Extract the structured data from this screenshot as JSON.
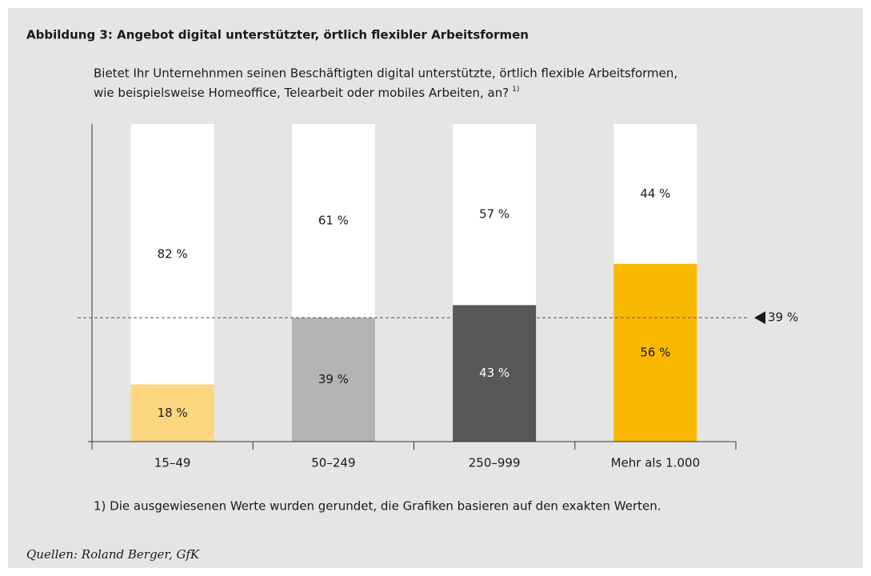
{
  "chart_data": {
    "type": "stacked_bar",
    "title": "Abbildung 3: Angebot digital unterstützter, örtlich flexibler Arbeitsformen",
    "subtitle": [
      "Bietet Ihr Unternehnmen seinen Beschäftigten digital unterstützte, örtlich flexible Arbeitsformen,",
      "wie beispielsweise Homeoffice, Telearbeit oder mobiles Arbeiten, an?"
    ],
    "subtitle_note": "1)",
    "categories": [
      "15–49",
      "50–249",
      "250–999",
      "Mehr als 1.000"
    ],
    "series": [
      {
        "colors": [
          "#fdd77f",
          "#b3b3b3",
          "#575757",
          "#f9b800"
        ],
        "values": [
          18,
          39,
          43,
          56
        ],
        "value_labels": [
          "18 %",
          "39 %",
          "43 %",
          "56 %"
        ]
      },
      {
        "color": "#ffffff",
        "values": [
          82,
          61,
          57,
          44
        ],
        "value_labels": [
          "82 %",
          "61 %",
          "57 %",
          "44 %"
        ]
      }
    ],
    "ylim": [
      0,
      100
    ],
    "reference_line": {
      "value": 39,
      "label": "39 %"
    },
    "footnote": "1) Die ausgewiesenen Werte wurden gerundet, die Grafiken basieren auf den exakten Werten.",
    "source": "Quellen: Roland Berger, GfK"
  }
}
